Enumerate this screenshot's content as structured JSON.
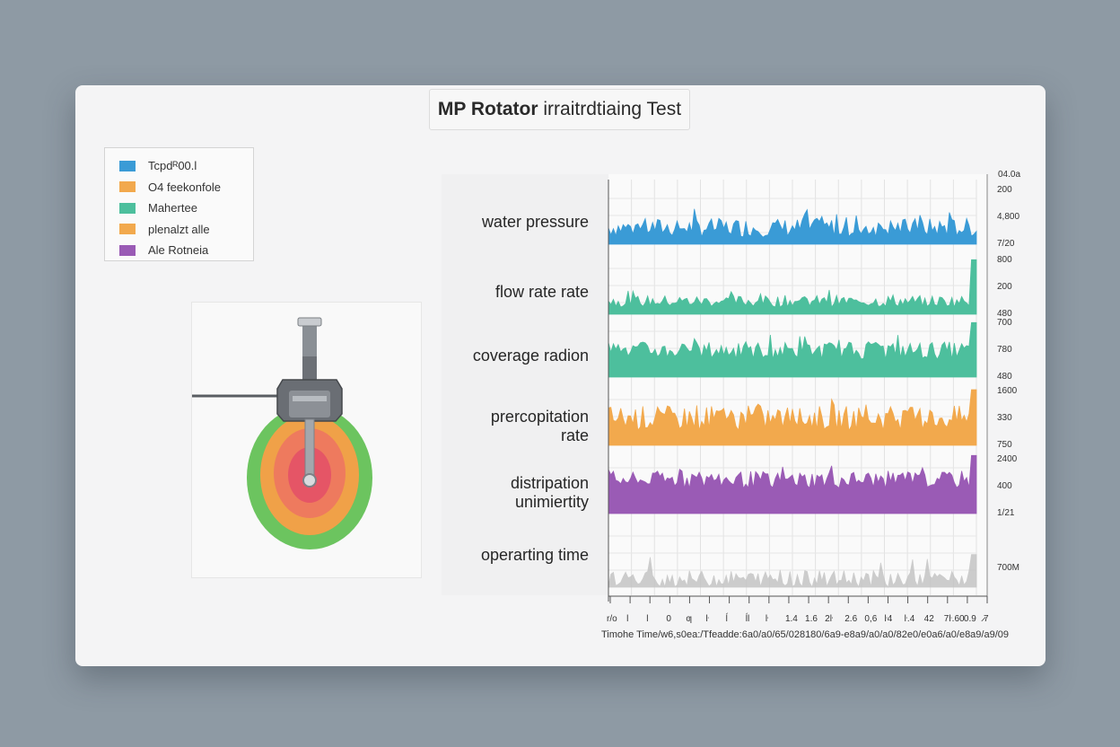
{
  "title": {
    "bold": "MP Rotator",
    "rest": " irraitrdtiaing Test"
  },
  "legend": [
    {
      "label": "Tcpdᴿ00.l",
      "color": "#3a9bd6"
    },
    {
      "label": "O4 feekonfole",
      "color": "#f2a94d"
    },
    {
      "label": "Mahertee",
      "color": "#4dbf9d"
    },
    {
      "label": "plenalzt alle",
      "color": "#f2a94d"
    },
    {
      "label": "Ale Rotneia",
      "color": "#9a5bb5"
    }
  ],
  "row_labels": [
    "water pressure",
    "flow rate rate",
    "coverage radion",
    "prercopitation rate",
    "distripation unimiertity",
    "operarting time"
  ],
  "axis_caption": "Timohe  Time/w6,s0ea:/Tfeadde:6a0/a0/65/028180/6a9-e8a9/a0/a0/82e0/e0a6/a0/e8a9/a9/09",
  "x_tick_labels": [
    "r/o",
    "l",
    "l",
    "0",
    "ƣ",
    "ŀ",
    "ĺ",
    "ĺl",
    "ŀ",
    "1.4",
    "1.6",
    "2ŀ",
    "2.6",
    "0,6",
    "ŀ4",
    "ŀ.4",
    "42",
    "7ŀ.60",
    "0.9",
    "̷7"
  ],
  "top_tick_label": "04.0a",
  "chart_data": {
    "type": "area",
    "title": "MP Rotator irraitrdtiaing Test",
    "xlabel": "Timohe",
    "x_range": [
      0,
      100
    ],
    "grid": true,
    "series": [
      {
        "name": "water pressure",
        "color": "#3a9bd6",
        "right_ticks": [
          "200",
          "4,800",
          "7/20"
        ],
        "baseline": 0.12,
        "amp": 0.32,
        "spike": 0.62,
        "end_jump": 0.0
      },
      {
        "name": "flow rate rate",
        "color": "#4dbf9d",
        "right_ticks": [
          "800",
          "200",
          "480"
        ],
        "baseline": 0.12,
        "amp": 0.2,
        "spike": 0.42,
        "end_jump": 0.92
      },
      {
        "name": "coverage radion",
        "color": "#4dbf9d",
        "right_ticks": [
          "700",
          "780",
          "480"
        ],
        "baseline": 0.3,
        "amp": 0.3,
        "spike": 0.72,
        "end_jump": 0.92
      },
      {
        "name": "prercopitation rate",
        "color": "#f2a94d",
        "right_ticks": [
          "1600",
          "330",
          "750"
        ],
        "baseline": 0.25,
        "amp": 0.42,
        "spike": 0.78,
        "end_jump": 0.94
      },
      {
        "name": "distripation unimiertity",
        "color": "#9a5bb5",
        "right_ticks": [
          "2400",
          "400",
          "1/21"
        ],
        "baseline": 0.42,
        "amp": 0.3,
        "spike": 0.82,
        "end_jump": 0.98
      },
      {
        "name": "operarting time",
        "color": "#c4c4c4",
        "right_ticks": [
          "700M"
        ],
        "baseline": 0.0,
        "amp": 0.28,
        "spike": 0.52,
        "end_jump": 0.55
      }
    ]
  },
  "colors": {
    "ring_outer": "#6cc45f",
    "ring_mid": "#f0a148",
    "ring_inner": "#ee7a5e",
    "ring_core": "#e55566"
  }
}
